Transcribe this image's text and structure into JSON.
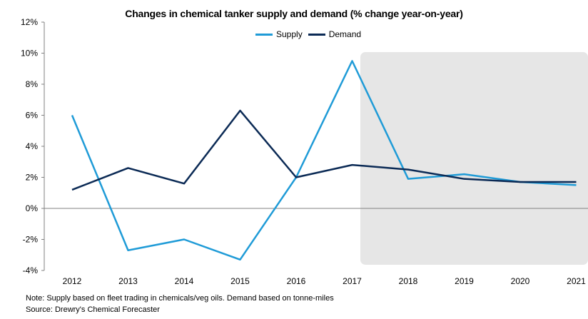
{
  "chart_data": {
    "type": "line",
    "title": "Changes in chemical tanker supply and demand (% change year-on-year)",
    "categories": [
      "2012",
      "2013",
      "2014",
      "2015",
      "2016",
      "2017",
      "2018",
      "2019",
      "2020",
      "2021"
    ],
    "series": [
      {
        "name": "Supply",
        "color": "#1f9bd7",
        "values": [
          6.0,
          -2.7,
          -2.0,
          -3.3,
          2.0,
          9.5,
          1.9,
          2.2,
          1.7,
          1.5
        ]
      },
      {
        "name": "Demand",
        "color": "#0b2a55",
        "values": [
          1.2,
          2.6,
          1.6,
          6.3,
          2.0,
          2.8,
          2.5,
          1.9,
          1.7,
          1.7
        ]
      }
    ],
    "ylim": [
      -4,
      12
    ],
    "yticks": [
      "-4%",
      "-2%",
      "0%",
      "2%",
      "4%",
      "6%",
      "8%",
      "10%",
      "12%"
    ],
    "forecast_shading": {
      "from": "2018",
      "to": "2021",
      "color": "#e6e6e6"
    },
    "legend_position": "top-center",
    "grid": false
  },
  "notes": {
    "line1": "Note: Supply based on fleet trading in chemicals/veg oils. Demand based on tonne-miles",
    "line2": "Source: Drewry's Chemical Forecaster"
  }
}
